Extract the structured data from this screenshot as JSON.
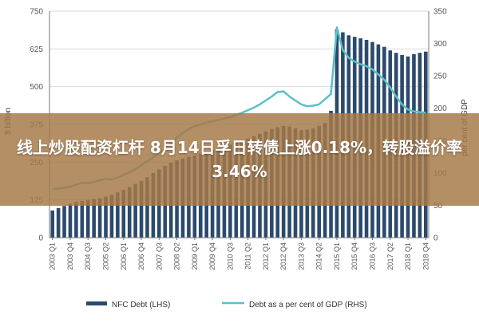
{
  "chart_data": {
    "type": "bar",
    "title": "",
    "xlabel": "",
    "ylabel": "$ billion",
    "y2label": "per cent of GDP",
    "ylim": [
      0,
      750
    ],
    "y2lim": [
      0,
      350
    ],
    "y_ticks": [
      "0",
      "125",
      "250",
      "375",
      "500",
      "625",
      "750"
    ],
    "y2_ticks": [
      "0",
      "50",
      "100",
      "150",
      "200",
      "250",
      "300",
      "350"
    ],
    "x_tick_labels": [
      "2003 Q1",
      "2003 Q4",
      "2004 Q3",
      "2005 Q2",
      "2006 Q1",
      "2006 Q4",
      "2007 Q3",
      "2008 Q2",
      "2009 Q1",
      "2009 Q4",
      "2010 Q3",
      "2011 Q2",
      "2012 Q1",
      "2012 Q4",
      "2013 Q3",
      "2014 Q2",
      "2015 Q1",
      "2015 Q4",
      "2016 Q3",
      "2017 Q2",
      "2018 Q1",
      "2018 Q4"
    ],
    "categories": [
      "2003 Q1",
      "2003 Q2",
      "2003 Q3",
      "2003 Q4",
      "2004 Q1",
      "2004 Q2",
      "2004 Q3",
      "2004 Q4",
      "2005 Q1",
      "2005 Q2",
      "2005 Q3",
      "2005 Q4",
      "2006 Q1",
      "2006 Q2",
      "2006 Q3",
      "2006 Q4",
      "2007 Q1",
      "2007 Q2",
      "2007 Q3",
      "2007 Q4",
      "2008 Q1",
      "2008 Q2",
      "2008 Q3",
      "2008 Q4",
      "2009 Q1",
      "2009 Q2",
      "2009 Q3",
      "2009 Q4",
      "2010 Q1",
      "2010 Q2",
      "2010 Q3",
      "2010 Q4",
      "2011 Q1",
      "2011 Q2",
      "2011 Q3",
      "2011 Q4",
      "2012 Q1",
      "2012 Q2",
      "2012 Q3",
      "2012 Q4",
      "2013 Q1",
      "2013 Q2",
      "2013 Q3",
      "2013 Q4",
      "2014 Q1",
      "2014 Q2",
      "2014 Q3",
      "2014 Q4",
      "2015 Q1",
      "2015 Q2",
      "2015 Q3",
      "2015 Q4",
      "2016 Q1",
      "2016 Q2",
      "2016 Q3",
      "2016 Q4",
      "2017 Q1",
      "2017 Q2",
      "2017 Q3",
      "2017 Q4",
      "2018 Q1",
      "2018 Q2",
      "2018 Q3",
      "2018 Q4"
    ],
    "series": [
      {
        "name": "NFC Debt (LHS)",
        "axis": "left",
        "kind": "bar",
        "color": "#2c4a6b",
        "values": [
          90,
          98,
          105,
          112,
          118,
          122,
          125,
          128,
          130,
          136,
          142,
          150,
          158,
          168,
          178,
          188,
          200,
          214,
          226,
          238,
          248,
          256,
          262,
          268,
          272,
          278,
          284,
          290,
          296,
          302,
          308,
          314,
          320,
          328,
          336,
          344,
          352,
          360,
          366,
          370,
          368,
          362,
          356,
          358,
          362,
          370,
          380,
          420,
          690,
          680,
          670,
          665,
          660,
          655,
          648,
          640,
          632,
          620,
          612,
          605,
          600,
          608,
          612,
          616
        ]
      },
      {
        "name": "Debt as a per cent of GDP (RHS)",
        "axis": "right",
        "kind": "line",
        "color": "#5bc0c8",
        "values": [
          75,
          76,
          77,
          79,
          82,
          85,
          84,
          86,
          89,
          91,
          90,
          93,
          97,
          101,
          106,
          112,
          118,
          124,
          130,
          138,
          146,
          154,
          162,
          168,
          172,
          175,
          178,
          180,
          182,
          184,
          186,
          190,
          193,
          197,
          201,
          206,
          212,
          218,
          225,
          226,
          218,
          212,
          206,
          203,
          204,
          206,
          214,
          222,
          325,
          290,
          278,
          272,
          268,
          265,
          260,
          252,
          244,
          232,
          218,
          206,
          198,
          195,
          194,
          193
        ]
      }
    ],
    "legend": {
      "position": "bottom"
    }
  },
  "headline": "线上炒股配资杠杆 8月14日孚日转债上涨0.18%，转股溢价率3.46%"
}
